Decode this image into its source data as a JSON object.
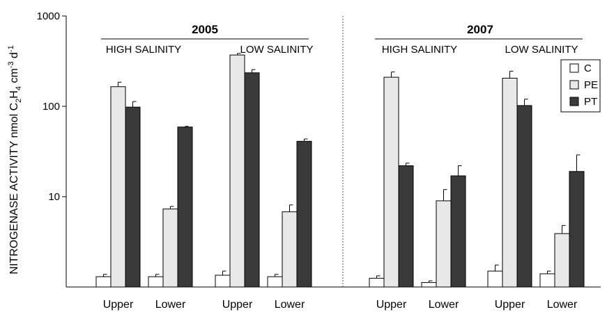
{
  "chart_data": {
    "type": "bar",
    "yscale": "log",
    "ylim": [
      1,
      1000
    ],
    "yticks": [
      10,
      100,
      1000
    ],
    "ylabel": {
      "main": "NITROGENASE ACTIVITY nmol C",
      "sub1": "2",
      "h": "H",
      "sub2": "4",
      "cm": " cm",
      "sup1": "-3",
      "d": " d",
      "sup2": "-1"
    },
    "series_names": [
      "C",
      "PE",
      "PT"
    ],
    "colors": {
      "C": "#ffffff",
      "PE": "#e8e8e8",
      "PT": "#3a3a3a"
    },
    "panels": [
      {
        "year": "2005",
        "salinity_labels": [
          "HIGH SALINITY",
          "LOW SALINITY"
        ],
        "groups": [
          {
            "label": "Upper",
            "values": [
              1.3,
              165,
              98
            ],
            "errors": [
              0.08,
              20,
              15
            ]
          },
          {
            "label": "Lower",
            "values": [
              1.3,
              7.3,
              59
            ],
            "errors": [
              0.08,
              0.5,
              1
            ]
          },
          {
            "label": "Upper",
            "values": [
              1.35,
              370,
              235
            ],
            "errors": [
              0.15,
              15,
              20
            ]
          },
          {
            "label": "Lower",
            "values": [
              1.3,
              6.8,
              41
            ],
            "errors": [
              0.08,
              1.3,
              2.5
            ]
          }
        ]
      },
      {
        "year": "2007",
        "salinity_labels": [
          "HIGH SALINITY",
          "LOW SALINITY"
        ],
        "groups": [
          {
            "label": "Upper",
            "values": [
              1.25,
              210,
              22
            ],
            "errors": [
              0.08,
              30,
              1.5
            ]
          },
          {
            "label": "Lower",
            "values": [
              1.12,
              9,
              17
            ],
            "errors": [
              0.05,
              3,
              5
            ]
          },
          {
            "label": "Upper",
            "values": [
              1.5,
              205,
              102
            ],
            "errors": [
              0.25,
              40,
              18
            ]
          },
          {
            "label": "Lower",
            "values": [
              1.4,
              3.9,
              19
            ],
            "errors": [
              0.1,
              0.9,
              10
            ]
          }
        ]
      }
    ]
  }
}
